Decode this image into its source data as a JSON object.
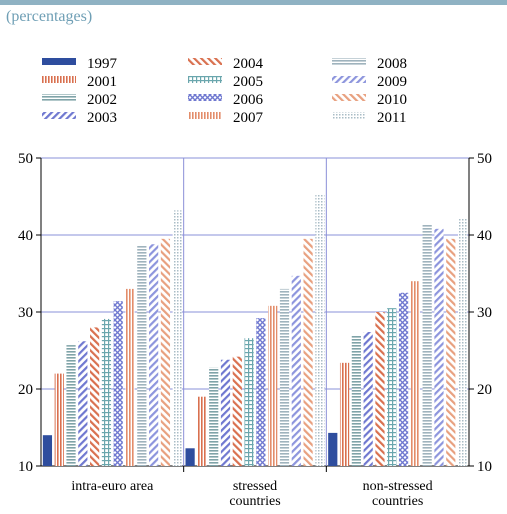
{
  "subtitle": "(percentages)",
  "chart_data": {
    "type": "bar",
    "title": "",
    "subtitle": "(percentages)",
    "xlabel": "",
    "ylabel": "",
    "ylim": [
      10,
      50
    ],
    "yticks": [
      10,
      20,
      30,
      40,
      50
    ],
    "grid": true,
    "legend_placement": "top",
    "categories": [
      [
        "intra-euro area"
      ],
      [
        "stressed",
        "countries"
      ],
      [
        "non-stressed",
        "countries"
      ]
    ],
    "category_labels": [
      "intra-euro area",
      "stressed countries",
      "non-stressed countries"
    ],
    "series": [
      {
        "name": "1997",
        "values": [
          14.0,
          12.3,
          14.3
        ],
        "color": "#2e4d9e",
        "pattern": "solid"
      },
      {
        "name": "2001",
        "values": [
          22.0,
          19.0,
          23.4
        ],
        "color": "#d9704f",
        "pattern": "vlines"
      },
      {
        "name": "2002",
        "values": [
          25.7,
          22.8,
          26.9
        ],
        "color": "#7fa3a8",
        "pattern": "hlines"
      },
      {
        "name": "2003",
        "values": [
          26.2,
          23.8,
          27.4
        ],
        "color": "#6f78d0",
        "pattern": "diag"
      },
      {
        "name": "2004",
        "values": [
          28.0,
          24.2,
          30.0
        ],
        "color": "#d9704f",
        "pattern": "diag-rev"
      },
      {
        "name": "2005",
        "values": [
          29.1,
          26.6,
          30.5
        ],
        "color": "#6aa6ad",
        "pattern": "grid"
      },
      {
        "name": "2006",
        "values": [
          31.4,
          29.2,
          32.5
        ],
        "color": "#6f78d0",
        "pattern": "cross"
      },
      {
        "name": "2007",
        "values": [
          33.0,
          30.8,
          34.0
        ],
        "color": "#e38d6a",
        "pattern": "vlines"
      },
      {
        "name": "2008",
        "values": [
          38.6,
          33.0,
          41.3
        ],
        "color": "#9fb3bd",
        "pattern": "hlines"
      },
      {
        "name": "2009",
        "values": [
          38.8,
          34.7,
          40.8
        ],
        "color": "#8d95dd",
        "pattern": "diag"
      },
      {
        "name": "2010",
        "values": [
          39.5,
          39.5,
          39.5
        ],
        "color": "#e8a07f",
        "pattern": "diag-rev"
      },
      {
        "name": "2011",
        "values": [
          43.2,
          45.3,
          42.1
        ],
        "color": "#a9bcc6",
        "pattern": "dots"
      }
    ]
  }
}
